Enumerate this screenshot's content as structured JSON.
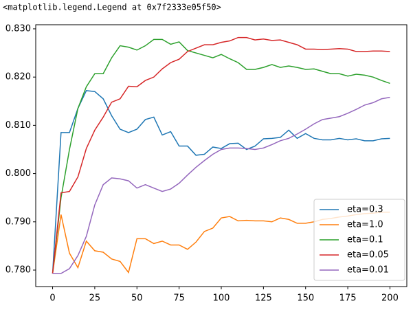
{
  "output_text": "<matplotlib.legend.Legend at 0x7f2333e05f50>",
  "chart_data": {
    "type": "line",
    "x": [
      0,
      5,
      10,
      15,
      20,
      25,
      30,
      35,
      40,
      45,
      50,
      55,
      60,
      65,
      70,
      75,
      80,
      85,
      90,
      95,
      100,
      105,
      110,
      115,
      120,
      125,
      130,
      135,
      140,
      145,
      150,
      155,
      160,
      165,
      170,
      175,
      180,
      185,
      190,
      195,
      200
    ],
    "series": [
      {
        "name": "eta=0.3",
        "color": "#1f77b4",
        "values": [
          0.7793,
          0.8085,
          0.8085,
          0.8135,
          0.8172,
          0.817,
          0.8155,
          0.812,
          0.8092,
          0.8085,
          0.8092,
          0.8112,
          0.8117,
          0.808,
          0.8087,
          0.8057,
          0.8057,
          0.8038,
          0.804,
          0.8055,
          0.8052,
          0.8062,
          0.8063,
          0.805,
          0.8057,
          0.8072,
          0.8073,
          0.8075,
          0.809,
          0.8073,
          0.8083,
          0.8073,
          0.807,
          0.807,
          0.8073,
          0.807,
          0.8072,
          0.8068,
          0.8068,
          0.8072,
          0.8073
        ]
      },
      {
        "name": "eta=1.0",
        "color": "#ff7f0e",
        "values": [
          0.7793,
          0.7915,
          0.7835,
          0.7805,
          0.786,
          0.784,
          0.7837,
          0.7823,
          0.7818,
          0.7795,
          0.7865,
          0.7865,
          0.7855,
          0.786,
          0.7852,
          0.7852,
          0.7843,
          0.7858,
          0.788,
          0.7887,
          0.7908,
          0.7911,
          0.7902,
          0.7903,
          0.7902,
          0.7902,
          0.79,
          0.7908,
          0.7905,
          0.7897,
          0.7897,
          0.79,
          0.7905,
          0.7907,
          0.791,
          0.7912,
          0.7915,
          0.7917,
          0.7918,
          0.792,
          0.792
        ]
      },
      {
        "name": "eta=0.1",
        "color": "#2ca02c",
        "values": [
          0.7793,
          0.795,
          0.805,
          0.8135,
          0.818,
          0.8207,
          0.8207,
          0.824,
          0.8265,
          0.8262,
          0.8256,
          0.8265,
          0.8278,
          0.8278,
          0.8268,
          0.8273,
          0.8255,
          0.825,
          0.8245,
          0.824,
          0.8247,
          0.8238,
          0.823,
          0.8216,
          0.8216,
          0.822,
          0.8226,
          0.822,
          0.8223,
          0.822,
          0.8216,
          0.8217,
          0.8212,
          0.8207,
          0.8207,
          0.8202,
          0.8206,
          0.8204,
          0.82,
          0.8193,
          0.8187
        ]
      },
      {
        "name": "eta=0.05",
        "color": "#d62728",
        "values": [
          0.7793,
          0.796,
          0.7963,
          0.7993,
          0.8052,
          0.809,
          0.8117,
          0.8148,
          0.8155,
          0.8181,
          0.818,
          0.8193,
          0.82,
          0.8217,
          0.823,
          0.8237,
          0.8253,
          0.826,
          0.8267,
          0.8267,
          0.8272,
          0.8275,
          0.8282,
          0.8282,
          0.8277,
          0.8279,
          0.8276,
          0.8277,
          0.8272,
          0.8267,
          0.8258,
          0.8258,
          0.8257,
          0.8258,
          0.8259,
          0.8258,
          0.8253,
          0.8253,
          0.8254,
          0.8254,
          0.8253
        ]
      },
      {
        "name": "eta=0.01",
        "color": "#9467bd",
        "values": [
          0.7793,
          0.7793,
          0.7803,
          0.783,
          0.787,
          0.7935,
          0.7977,
          0.7991,
          0.7989,
          0.7985,
          0.797,
          0.7977,
          0.797,
          0.7963,
          0.7968,
          0.798,
          0.7997,
          0.8013,
          0.8027,
          0.804,
          0.805,
          0.8053,
          0.8053,
          0.8052,
          0.805,
          0.8053,
          0.806,
          0.8068,
          0.8073,
          0.8082,
          0.8092,
          0.8103,
          0.8112,
          0.8115,
          0.8118,
          0.8125,
          0.8133,
          0.8142,
          0.8147,
          0.8155,
          0.8158
        ]
      }
    ],
    "xlim": [
      -10,
      210
    ],
    "ylim": [
      0.77658,
      0.83085
    ],
    "xticks": [
      0,
      25,
      50,
      75,
      100,
      125,
      150,
      175,
      200
    ],
    "yticks": [
      {
        "value": 0.78,
        "label": "0.780"
      },
      {
        "value": 0.79,
        "label": "0.790"
      },
      {
        "value": 0.8,
        "label": "0.800"
      },
      {
        "value": 0.81,
        "label": "0.810"
      },
      {
        "value": 0.82,
        "label": "0.820"
      },
      {
        "value": 0.83,
        "label": "0.830"
      }
    ],
    "grid": false,
    "legend": "lower right"
  }
}
